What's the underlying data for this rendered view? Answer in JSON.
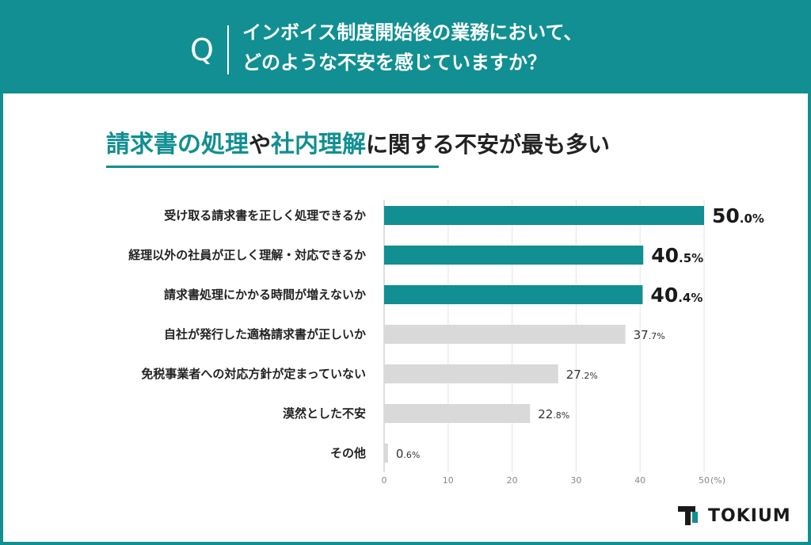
{
  "header": {
    "q_mark": "Q",
    "question_line1": "インボイス制度開始後の業務において、",
    "question_line2": "どのような不安を感じていますか？"
  },
  "headline": {
    "part1": "請求書の処理",
    "part2": "や",
    "part3": "社内理解",
    "part4": "に関する不安が最も多い"
  },
  "logo": {
    "text": "TOKIUM",
    "icon": "tokium-logo-icon"
  },
  "colors": {
    "accent": "#118f92",
    "bar_grey": "#d9d9d9",
    "grid": "#e3e3e3"
  },
  "chart_data": {
    "type": "bar",
    "orientation": "horizontal",
    "categories": [
      "受け取る請求書を正しく処理できるか",
      "経理以外の社員が正しく理解・対応できるか",
      "請求書処理にかかる時間が増えないか",
      "自社が発行した適格請求書が正しいか",
      "免税事業者への対応方針が定まっていない",
      "漠然とした不安",
      "その他"
    ],
    "values": [
      50.0,
      40.5,
      40.4,
      37.7,
      27.2,
      22.8,
      0.6
    ],
    "value_labels": [
      "50.0%",
      "40.5%",
      "40.4%",
      "37.7%",
      "27.2%",
      "22.8%",
      "0.6%"
    ],
    "highlighted": [
      true,
      true,
      true,
      false,
      false,
      false,
      false
    ],
    "xticks": [
      "0",
      "10",
      "20",
      "30",
      "40",
      "50"
    ],
    "xunit": "(%)",
    "xlim": [
      0,
      50
    ],
    "grid": true,
    "legend": "none"
  }
}
